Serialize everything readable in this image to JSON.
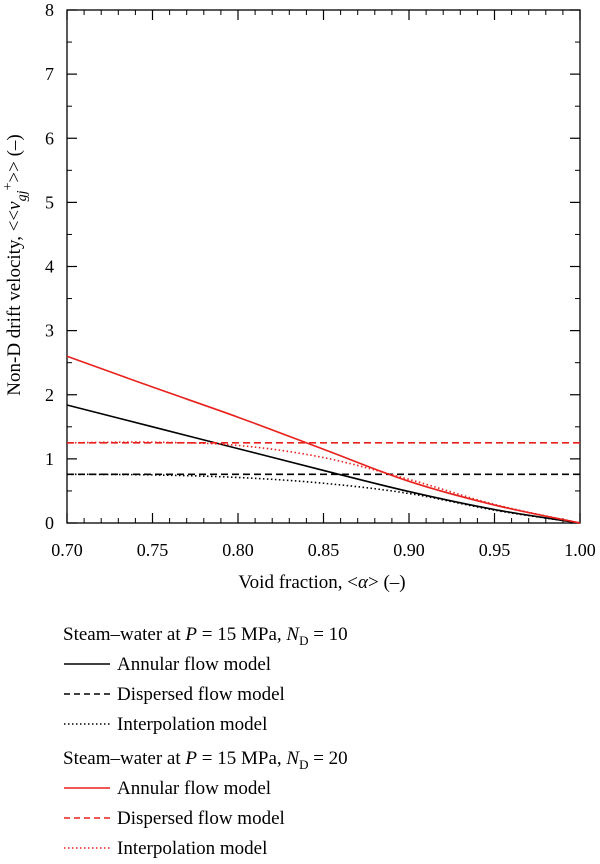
{
  "chart_data": {
    "type": "line",
    "xlabel": "Void fraction, <α> (–)",
    "ylabel": "Non-D drift velocity, <<v_gj^+>> (–)",
    "xlim": [
      0.7,
      1.0
    ],
    "ylim": [
      0,
      8
    ],
    "x_ticks": [
      "0.70",
      "0.75",
      "0.80",
      "0.85",
      "0.90",
      "0.95",
      "1.00"
    ],
    "y_ticks": [
      "0",
      "1",
      "2",
      "3",
      "4",
      "5",
      "6",
      "7",
      "8"
    ],
    "grid": false,
    "legend_placement": "below",
    "colors": {
      "nd10": "#000000",
      "nd20": "#e8211d"
    },
    "series": [
      {
        "name": "Annular flow model",
        "group": "nd10",
        "dash": "solid",
        "x": [
          0.7,
          0.75,
          0.8,
          0.85,
          0.9,
          0.95,
          1.0
        ],
        "y": [
          1.84,
          1.5,
          1.16,
          0.82,
          0.49,
          0.21,
          0.0
        ]
      },
      {
        "name": "Dispersed flow model",
        "group": "nd10",
        "dash": "dashed",
        "x": [
          0.7,
          1.0
        ],
        "y": [
          0.76,
          0.76
        ]
      },
      {
        "name": "Interpolation model",
        "group": "nd10",
        "dash": "dotted",
        "x": [
          0.7,
          0.75,
          0.8,
          0.85,
          0.9,
          0.95,
          1.0
        ],
        "y": [
          0.76,
          0.75,
          0.71,
          0.62,
          0.46,
          0.2,
          0.0
        ]
      },
      {
        "name": "Annular flow model",
        "group": "nd20",
        "dash": "solid",
        "x": [
          0.7,
          0.75,
          0.8,
          0.85,
          0.9,
          0.95,
          1.0
        ],
        "y": [
          2.6,
          2.12,
          1.65,
          1.15,
          0.65,
          0.28,
          0.0
        ]
      },
      {
        "name": "Dispersed flow model",
        "group": "nd20",
        "dash": "dashed",
        "x": [
          0.7,
          1.0
        ],
        "y": [
          1.25,
          1.25
        ]
      },
      {
        "name": "Interpolation model",
        "group": "nd20",
        "dash": "dotted",
        "x": [
          0.7,
          0.75,
          0.8,
          0.85,
          0.9,
          0.95,
          1.0
        ],
        "y": [
          1.25,
          1.26,
          1.21,
          1.02,
          0.68,
          0.29,
          0.0
        ]
      }
    ]
  },
  "legend": {
    "group1": {
      "prefix": "Steam–water at ",
      "p": "P",
      "mid": " = 15 MPa, ",
      "n": "N",
      "sub": "D",
      "suffix": " = 10"
    },
    "group2": {
      "prefix": "Steam–water at ",
      "p": "P",
      "mid": " = 15 MPa, ",
      "n": "N",
      "sub": "D",
      "suffix": " = 20"
    }
  }
}
